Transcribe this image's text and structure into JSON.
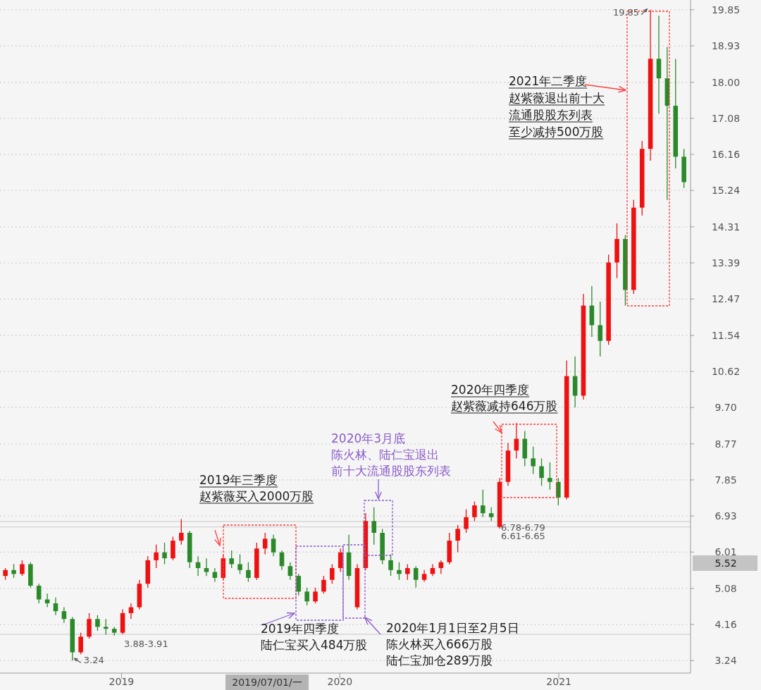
{
  "chart_data": {
    "type": "candlestick",
    "x": [
      "2018-06-21",
      "2018-07-05",
      "2018-07-19",
      "2018-08-02",
      "2018-08-16",
      "2018-08-30",
      "2018-09-13",
      "2018-09-27",
      "2018-10-11",
      "2018-10-25",
      "2018-11-08",
      "2018-11-22",
      "2018-12-06",
      "2018-12-20",
      "2019-01-03",
      "2019-01-17",
      "2019-01-31",
      "2019-02-14",
      "2019-02-28",
      "2019-03-14",
      "2019-03-28",
      "2019-04-11",
      "2019-04-25",
      "2019-05-09",
      "2019-05-23",
      "2019-06-06",
      "2019-06-20",
      "2019-07-04",
      "2019-07-18",
      "2019-08-01",
      "2019-08-15",
      "2019-08-29",
      "2019-09-12",
      "2019-09-26",
      "2019-10-10",
      "2019-10-24",
      "2019-11-07",
      "2019-11-21",
      "2019-12-05",
      "2019-12-19",
      "2020-01-02",
      "2020-01-16",
      "2020-01-30",
      "2020-02-13",
      "2020-02-27",
      "2020-03-12",
      "2020-03-26",
      "2020-04-09",
      "2020-04-23",
      "2020-05-07",
      "2020-05-21",
      "2020-06-04",
      "2020-06-18",
      "2020-07-02",
      "2020-07-16",
      "2020-07-30",
      "2020-08-13",
      "2020-08-27",
      "2020-09-10",
      "2020-09-24",
      "2020-10-08",
      "2020-10-22",
      "2020-11-05",
      "2020-11-19",
      "2020-12-03",
      "2020-12-17",
      "2020-12-31",
      "2021-01-14",
      "2021-01-28",
      "2021-02-11",
      "2021-02-25",
      "2021-03-11",
      "2021-03-25",
      "2021-04-08",
      "2021-04-22",
      "2021-05-06",
      "2021-05-20",
      "2021-06-03",
      "2021-06-17",
      "2021-07-01",
      "2021-07-15",
      "2021-07-29"
    ],
    "ohlc": [
      [
        5.4,
        5.6,
        5.3,
        5.55
      ],
      [
        5.55,
        5.7,
        5.35,
        5.45
      ],
      [
        5.45,
        5.8,
        5.4,
        5.7
      ],
      [
        5.7,
        5.75,
        5.1,
        5.15
      ],
      [
        5.15,
        5.2,
        4.7,
        4.8
      ],
      [
        4.8,
        4.95,
        4.6,
        4.7
      ],
      [
        4.7,
        4.85,
        4.4,
        4.5
      ],
      [
        4.5,
        4.6,
        4.2,
        4.3
      ],
      [
        4.3,
        4.35,
        3.24,
        3.45
      ],
      [
        3.45,
        3.95,
        3.4,
        3.85
      ],
      [
        3.85,
        4.45,
        3.8,
        4.3
      ],
      [
        4.3,
        4.4,
        4.0,
        4.1
      ],
      [
        4.1,
        4.3,
        3.9,
        4.05
      ],
      [
        4.05,
        4.1,
        3.88,
        3.95
      ],
      [
        3.95,
        4.55,
        3.91,
        4.45
      ],
      [
        4.45,
        4.7,
        4.3,
        4.6
      ],
      [
        4.6,
        5.3,
        4.55,
        5.2
      ],
      [
        5.2,
        5.9,
        5.1,
        5.8
      ],
      [
        5.8,
        6.2,
        5.6,
        6.0
      ],
      [
        6.0,
        6.25,
        5.7,
        5.85
      ],
      [
        5.85,
        6.4,
        5.8,
        6.3
      ],
      [
        6.3,
        6.85,
        6.2,
        6.5
      ],
      [
        6.5,
        6.55,
        5.6,
        5.75
      ],
      [
        5.75,
        5.9,
        5.4,
        5.6
      ],
      [
        5.6,
        5.85,
        5.4,
        5.5
      ],
      [
        5.5,
        5.6,
        5.25,
        5.35
      ],
      [
        5.35,
        5.95,
        5.3,
        5.85
      ],
      [
        5.85,
        6.05,
        5.6,
        5.7
      ],
      [
        5.7,
        5.95,
        5.45,
        5.55
      ],
      [
        5.55,
        5.75,
        5.25,
        5.35
      ],
      [
        5.35,
        6.25,
        5.3,
        6.1
      ],
      [
        6.1,
        6.5,
        5.95,
        6.35
      ],
      [
        6.35,
        6.45,
        5.9,
        6.0
      ],
      [
        6.0,
        6.05,
        5.55,
        5.65
      ],
      [
        5.65,
        5.75,
        5.3,
        5.4
      ],
      [
        5.4,
        5.45,
        4.9,
        5.0
      ],
      [
        5.0,
        5.1,
        4.65,
        4.75
      ],
      [
        4.75,
        5.1,
        4.7,
        5.0
      ],
      [
        5.0,
        5.4,
        4.95,
        5.3
      ],
      [
        5.3,
        5.7,
        5.2,
        5.6
      ],
      [
        5.6,
        6.1,
        5.5,
        6.0
      ],
      [
        6.0,
        6.45,
        5.3,
        5.4
      ],
      [
        4.6,
        5.7,
        4.55,
        5.6
      ],
      [
        5.6,
        7.0,
        5.55,
        6.8
      ],
      [
        6.8,
        7.15,
        6.2,
        6.5
      ],
      [
        6.5,
        6.6,
        5.7,
        5.8
      ],
      [
        5.8,
        5.95,
        5.4,
        5.55
      ],
      [
        5.55,
        5.75,
        5.3,
        5.45
      ],
      [
        5.45,
        5.7,
        5.3,
        5.6
      ],
      [
        5.6,
        5.65,
        5.1,
        5.3
      ],
      [
        5.3,
        5.55,
        5.25,
        5.45
      ],
      [
        5.45,
        5.7,
        5.4,
        5.6
      ],
      [
        5.6,
        5.8,
        5.45,
        5.75
      ],
      [
        5.75,
        6.5,
        5.7,
        6.3
      ],
      [
        6.3,
        6.7,
        6.0,
        6.6
      ],
      [
        6.6,
        7.1,
        6.5,
        6.9
      ],
      [
        6.9,
        7.3,
        6.8,
        7.2
      ],
      [
        7.2,
        7.6,
        6.9,
        7.0
      ],
      [
        7.0,
        7.15,
        6.8,
        6.9
      ],
      [
        6.65,
        7.9,
        6.61,
        7.8
      ],
      [
        7.8,
        8.8,
        7.7,
        8.6
      ],
      [
        8.6,
        9.3,
        8.4,
        8.9
      ],
      [
        8.9,
        9.1,
        8.2,
        8.4
      ],
      [
        8.4,
        8.7,
        8.0,
        8.2
      ],
      [
        8.2,
        8.4,
        7.7,
        7.9
      ],
      [
        7.9,
        8.3,
        7.6,
        7.8
      ],
      [
        7.8,
        7.9,
        7.2,
        7.4
      ],
      [
        7.4,
        10.9,
        7.35,
        10.5
      ],
      [
        10.5,
        11.0,
        9.7,
        10.0
      ],
      [
        10.0,
        12.6,
        9.9,
        12.3
      ],
      [
        12.3,
        12.8,
        11.5,
        11.8
      ],
      [
        11.8,
        12.4,
        11.0,
        11.4
      ],
      [
        11.4,
        13.6,
        11.3,
        13.4
      ],
      [
        13.4,
        14.4,
        13.0,
        14.0
      ],
      [
        14.0,
        14.1,
        12.3,
        12.7
      ],
      [
        12.7,
        15.0,
        12.6,
        14.8
      ],
      [
        14.8,
        16.5,
        14.6,
        16.3
      ],
      [
        16.3,
        19.85,
        16.0,
        18.6
      ],
      [
        18.6,
        19.7,
        17.2,
        18.1
      ],
      [
        18.1,
        18.9,
        15.0,
        17.4
      ],
      [
        17.4,
        18.6,
        15.8,
        16.1
      ],
      [
        16.1,
        16.3,
        15.3,
        15.45
      ]
    ],
    "colors": [
      "#ee1111",
      "#2a8a2a",
      "#ee1111",
      "#2a8a2a",
      "#2a8a2a",
      "#2a8a2a",
      "#2a8a2a",
      "#2a8a2a",
      "#2a8a2a",
      "#ee1111",
      "#ee1111",
      "#2a8a2a",
      "#2a8a2a",
      "#2a8a2a",
      "#ee1111",
      "#ee1111",
      "#ee1111",
      "#ee1111",
      "#ee1111",
      "#2a8a2a",
      "#ee1111",
      "#ee1111",
      "#2a8a2a",
      "#2a8a2a",
      "#2a8a2a",
      "#2a8a2a",
      "#ee1111",
      "#2a8a2a",
      "#2a8a2a",
      "#2a8a2a",
      "#ee1111",
      "#ee1111",
      "#2a8a2a",
      "#2a8a2a",
      "#2a8a2a",
      "#2a8a2a",
      "#2a8a2a",
      "#ee1111",
      "#ee1111",
      "#ee1111",
      "#ee1111",
      "#2a8a2a",
      "#ee1111",
      "#ee1111",
      "#2a8a2a",
      "#2a8a2a",
      "#2a8a2a",
      "#2a8a2a",
      "#ee1111",
      "#2a8a2a",
      "#ee1111",
      "#ee1111",
      "#ee1111",
      "#ee1111",
      "#ee1111",
      "#ee1111",
      "#ee1111",
      "#2a8a2a",
      "#2a8a2a",
      "#ee1111",
      "#ee1111",
      "#ee1111",
      "#2a8a2a",
      "#2a8a2a",
      "#2a8a2a",
      "#2a8a2a",
      "#2a8a2a",
      "#ee1111",
      "#2a8a2a",
      "#ee1111",
      "#2a8a2a",
      "#2a8a2a",
      "#ee1111",
      "#ee1111",
      "#2a8a2a",
      "#ee1111",
      "#ee1111",
      "#ee1111",
      "#2a8a2a",
      "#2a8a2a",
      "#2a8a2a",
      "#2a8a2a"
    ],
    "xlim": [
      "2018-06-12",
      "2021-08-09"
    ],
    "xticks": [
      {
        "value": "2019-01-01",
        "label": "2019"
      },
      {
        "value": "2020-01-01",
        "label": "2020"
      },
      {
        "value": "2021-01-01",
        "label": "2021"
      }
    ],
    "ylim": [
      2.92,
      20.1
    ],
    "yticks": [
      3.24,
      4.16,
      5.08,
      6.01,
      6.93,
      7.85,
      8.77,
      {
        "value": 9.7,
        "label": "9.70"
      },
      10.62,
      11.54,
      12.47,
      13.39,
      14.31,
      15.24,
      16.16,
      17.08,
      {
        "value": 18,
        "label": "18.00"
      },
      18.93,
      19.85
    ],
    "grid": "y",
    "ref_lines": [
      {
        "axis": "y",
        "value": 3.91,
        "label": null,
        "color": "#c8c8c8"
      },
      {
        "axis": "y",
        "value": 6.79,
        "label": null,
        "color": "#c8c8c8"
      },
      {
        "axis": "y",
        "value": 6.65,
        "label": null,
        "color": "#c8c8c8"
      }
    ],
    "annotations": [
      {
        "text": "3.24",
        "x": "2018-10-11",
        "y": 3.24
      },
      {
        "text": "3.88-3.91",
        "x": "2019-01-03",
        "y": 3.88
      },
      {
        "text": "6.78-6.79",
        "x": "2020-09-24",
        "y": 6.79
      },
      {
        "text": "6.61-6.65",
        "x": "2020-09-24",
        "y": 6.61
      },
      {
        "text": "19.85",
        "x": "2021-06-03",
        "y": 19.85
      },
      "2019年三季度",
      "赵紫薇买入2000万股",
      "2019年四季度",
      "陆仁宝买入484万股",
      "2020年1月1日至2月5日",
      "陈火林买入666万股",
      "陆仁宝加仓289万股",
      "2020年3月底",
      "陈火林、陆仁宝退出",
      "前十大流通股股东列表",
      "2020年四季度",
      "赵紫薇减持646万股",
      "2021年二季度",
      "赵紫薇退出前十大",
      "流通股股东列表",
      "至少减持500万股",
      "2019/07/01/一",
      "5.52"
    ]
  }
}
